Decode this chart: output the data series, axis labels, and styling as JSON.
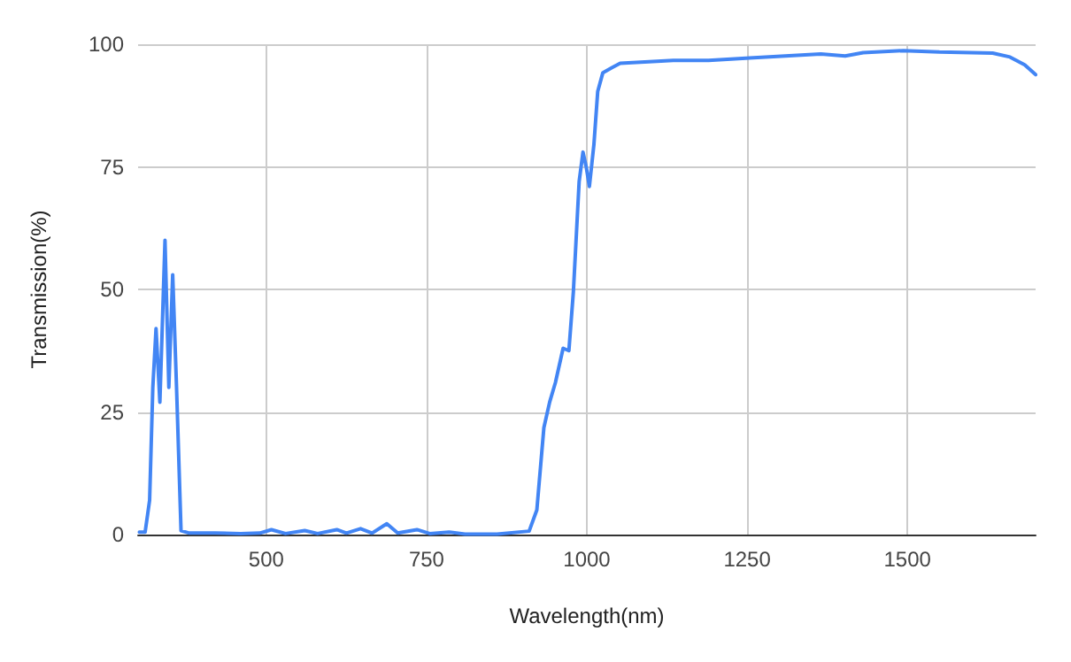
{
  "chart_data": {
    "type": "line",
    "xlabel": "Wavelength(nm)",
    "ylabel": "Transmission(%)",
    "xlim": [
      300,
      1700
    ],
    "xticks": [
      500,
      750,
      1000,
      1250,
      1500
    ],
    "ylim": [
      0,
      100
    ],
    "yticks": [
      0,
      25,
      50,
      75,
      100
    ],
    "grid": true,
    "marker": "none",
    "line_style": "solid",
    "series": [
      {
        "color": "#4285f4",
        "x": [
          302,
          311,
          318,
          323,
          328,
          334,
          342,
          348,
          354,
          360,
          367,
          380,
          420,
          460,
          490,
          508,
          530,
          560,
          580,
          610,
          625,
          647,
          665,
          688,
          705,
          735,
          755,
          785,
          810,
          860,
          910,
          922,
          933,
          942,
          951,
          963,
          972,
          979,
          988,
          994,
          999,
          1004,
          1011,
          1017,
          1025,
          1039,
          1052,
          1135,
          1190,
          1254,
          1365,
          1403,
          1431,
          1494,
          1550,
          1633,
          1660,
          1683,
          1700
        ],
        "values": [
          0.5,
          0.5,
          7,
          30,
          42,
          27,
          60,
          30,
          53,
          30,
          0.8,
          0.3,
          0.3,
          0.2,
          0.3,
          1,
          0.2,
          0.8,
          0.2,
          1,
          0.3,
          1.2,
          0.3,
          2.2,
          0.3,
          1,
          0.2,
          0.5,
          0.1,
          0.1,
          0.7,
          5,
          21.8,
          27,
          31,
          38,
          37.5,
          49.5,
          72,
          78,
          75,
          71,
          79.5,
          90.4,
          94.2,
          95.2,
          96.1,
          96.7,
          96.7,
          97.2,
          98,
          97.6,
          98.3,
          98.7,
          98.4,
          98.2,
          97.4,
          95.8,
          93.8
        ]
      }
    ]
  }
}
